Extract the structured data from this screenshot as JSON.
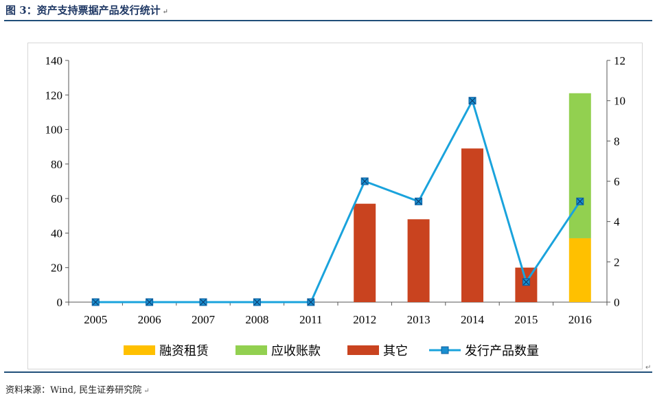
{
  "header": {
    "title": "图 3：资产支持票据产品发行统计"
  },
  "footer": {
    "source": "资料来源：Wind, 民生证券研究院"
  },
  "return_mark": "↵",
  "chart_data": {
    "type": "bar",
    "categories": [
      "2005",
      "2006",
      "2007",
      "2008",
      "2011",
      "2012",
      "2013",
      "2014",
      "2015",
      "2016"
    ],
    "series": [
      {
        "name": "融资租赁",
        "kind": "bar-stack",
        "axis": "left",
        "color": "#ffc000",
        "values": [
          0,
          0,
          0,
          0,
          0,
          0,
          0,
          0,
          0,
          37
        ]
      },
      {
        "name": "应收账款",
        "kind": "bar-stack",
        "axis": "left",
        "color": "#92d050",
        "values": [
          0,
          0,
          0,
          0,
          0,
          0,
          0,
          0,
          0,
          84
        ]
      },
      {
        "name": "其它",
        "kind": "bar-stack",
        "axis": "left",
        "color": "#c9431f",
        "values": [
          0,
          0,
          0,
          0,
          0,
          57,
          48,
          89,
          20,
          0
        ]
      },
      {
        "name": "发行产品数量",
        "kind": "line",
        "axis": "right",
        "color": "#1aa3dc",
        "values": [
          0,
          0,
          0,
          0,
          0,
          6,
          5,
          10,
          1,
          5
        ]
      }
    ],
    "y_left": {
      "min": 0,
      "max": 140,
      "ticks": [
        0,
        20,
        40,
        60,
        80,
        100,
        120,
        140
      ]
    },
    "y_right": {
      "min": 0,
      "max": 12,
      "ticks": [
        0,
        2,
        4,
        6,
        8,
        10,
        12
      ]
    },
    "legend_position": "bottom",
    "grid": false
  }
}
